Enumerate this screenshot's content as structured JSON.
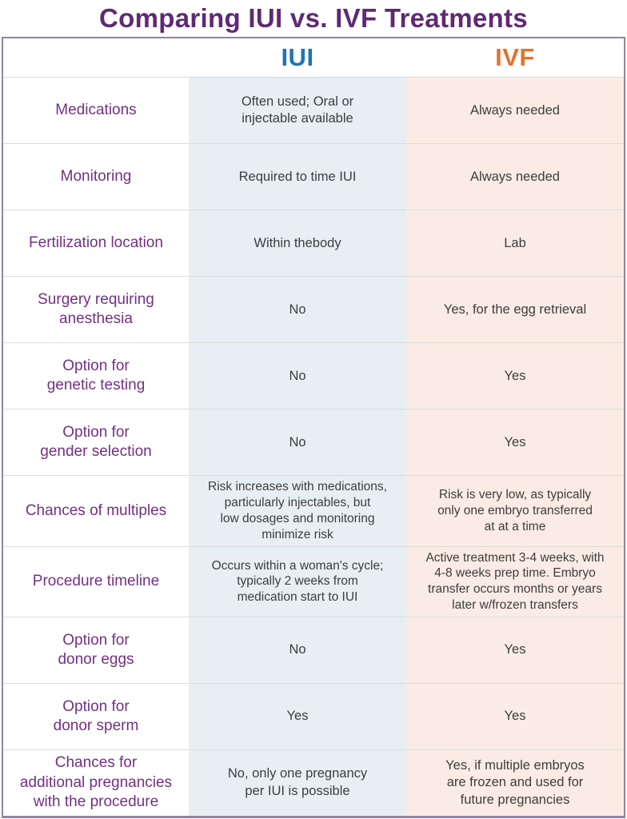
{
  "title": "Comparing IUI vs. IVF Treatments",
  "columns": {
    "iui": "IUI",
    "ivf": "IVF"
  },
  "colors": {
    "title_purple": "#5f2973",
    "label_purple": "#733083",
    "iui_blue": "#2173b4",
    "ivf_orange": "#e2732d",
    "iui_column_bg": "#e7eff5",
    "ivf_column_bg": "#faece4",
    "table_border_purple": "#9383a2",
    "row_divider_gray": "#dcdcdc",
    "cell_text_gray": "#3d3d3d"
  },
  "rows": [
    {
      "label": "Medications",
      "iui": "Often used; Oral or\ninjectable available",
      "ivf": "Always needed"
    },
    {
      "label": "Monitoring",
      "iui": "Required to time IUI",
      "ivf": "Always needed"
    },
    {
      "label": "Fertilization location",
      "iui": "Within thebody",
      "ivf": "Lab"
    },
    {
      "label": "Surgery requiring\nanesthesia",
      "iui": "No",
      "ivf": "Yes, for the egg retrieval"
    },
    {
      "label": "Option for\ngenetic testing",
      "iui": "No",
      "ivf": "Yes"
    },
    {
      "label": "Option for\ngender selection",
      "iui": "No",
      "ivf": "Yes"
    },
    {
      "label": "Chances of multiples",
      "iui": "Risk increases with medications,\nparticularly injectables, but\nlow dosages and monitoring\nminimize risk",
      "ivf": "Risk is very low, as typically\nonly one embryo transferred\nat at a time"
    },
    {
      "label": "Procedure timeline",
      "iui": "Occurs within a woman's cycle;\ntypically 2 weeks from\nmedication start to IUI",
      "ivf": "Active treatment 3-4 weeks, with\n4-8 weeks  prep time.  Embryo\ntransfer occurs months or years\nlater w/frozen transfers"
    },
    {
      "label": "Option for\ndonor eggs",
      "iui": "No",
      "ivf": "Yes"
    },
    {
      "label": "Option for\ndonor sperm",
      "iui": "Yes",
      "ivf": "Yes"
    },
    {
      "label": "Chances for\nadditional pregnancies\nwith the procedure",
      "iui": "No, only one pregnancy\nper IUI is possible",
      "ivf": "Yes, if multiple embryos\nare frozen and used for\nfuture pregnancies"
    }
  ]
}
